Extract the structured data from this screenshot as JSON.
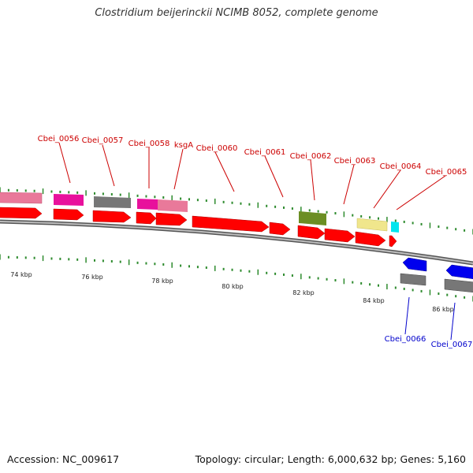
{
  "title": "Clostridium beijerinckii NCIMB 8052, complete genome",
  "footer": {
    "accession": "Accession: NC_009617",
    "summary": "Topology: circular; Length: 6,000,632 bp; Genes: 5,160"
  },
  "colors": {
    "backbone": "#8a8a8a",
    "tick": "#2e8b2e",
    "forward_label": "#cc0000",
    "reverse_label": "#0000cc",
    "cds": "#ff0000",
    "gene_pink": "#e9799a",
    "gene_magenta": "#e8119c",
    "gene_grey": "#7a7a7a",
    "gene_olive": "#6b8e23",
    "gene_khaki": "#f0e68c",
    "gene_cyan": "#00e5ee",
    "gene_blue": "#0000ee"
  },
  "scale": {
    "unit": "kbp",
    "labels": [
      "74 kbp",
      "76 kbp",
      "78 kbp",
      "80 kbp",
      "82 kbp",
      "84 kbp",
      "86 kbp"
    ]
  },
  "genes": [
    {
      "name": "Cbei_0056",
      "strand": "+",
      "color": "gene_magenta"
    },
    {
      "name": "Cbei_0057",
      "strand": "+",
      "color": "gene_grey"
    },
    {
      "name": "Cbei_0058",
      "strand": "+",
      "color": "gene_magenta"
    },
    {
      "name": "ksgA",
      "strand": "+",
      "color": "gene_pink"
    },
    {
      "name": "Cbei_0060",
      "strand": "+",
      "color": "cds"
    },
    {
      "name": "Cbei_0061",
      "strand": "+",
      "color": "cds"
    },
    {
      "name": "Cbei_0062",
      "strand": "+",
      "color": "gene_olive"
    },
    {
      "name": "Cbei_0063",
      "strand": "+",
      "color": "cds"
    },
    {
      "name": "Cbei_0064",
      "strand": "+",
      "color": "gene_khaki"
    },
    {
      "name": "Cbei_0065",
      "strand": "+",
      "color": "gene_cyan"
    },
    {
      "name": "Cbei_0066",
      "strand": "-",
      "color": "gene_blue"
    },
    {
      "name": "Cbei_0067",
      "strand": "-",
      "color": "gene_blue"
    }
  ]
}
